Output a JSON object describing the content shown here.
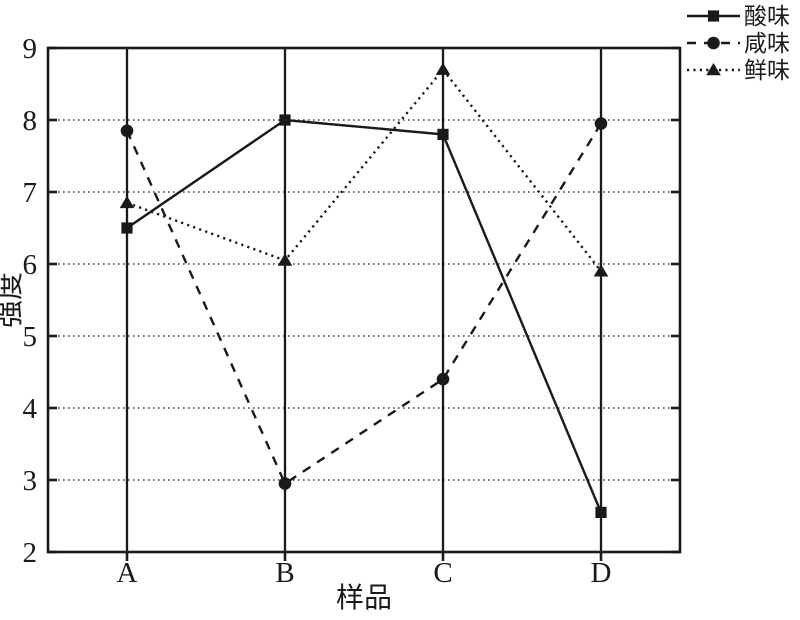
{
  "ink_color": "#1a1a1a",
  "background_color": "#ffffff",
  "chart_data": {
    "type": "line",
    "title": "",
    "xlabel": "样品",
    "ylabel": "强度",
    "categories": [
      "A",
      "B",
      "C",
      "D"
    ],
    "series": [
      {
        "name": "酸味",
        "marker": "square",
        "line": "solid",
        "values": [
          6.5,
          8.0,
          7.8,
          2.55
        ]
      },
      {
        "name": "咸味",
        "marker": "circle",
        "line": "dashed",
        "values": [
          7.85,
          2.95,
          4.4,
          7.95
        ]
      },
      {
        "name": "鲜味",
        "marker": "triangle",
        "line": "dotted",
        "values": [
          6.85,
          6.05,
          8.7,
          5.9
        ]
      }
    ],
    "ylim": [
      2,
      9
    ],
    "yticks": [
      2,
      3,
      4,
      5,
      6,
      7,
      8,
      9
    ],
    "grid": "horizontal dotted lines at each y tick; solid vertical line at each category",
    "legend_position": "top-right outside plot",
    "color": "#1a1a1a"
  }
}
